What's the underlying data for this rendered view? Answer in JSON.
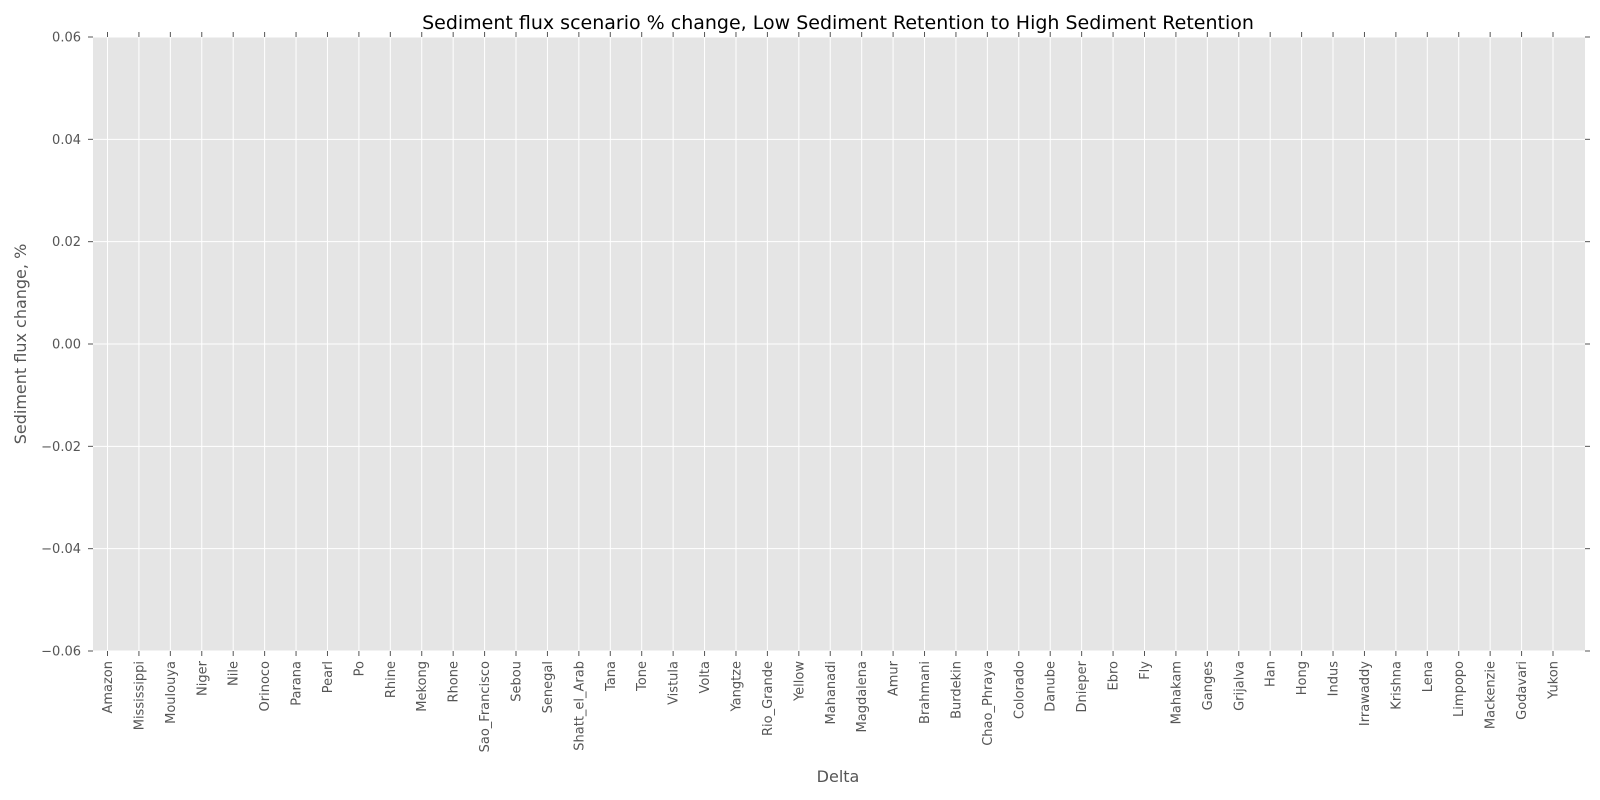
{
  "chart_data": {
    "type": "bar",
    "title": "Sediment flux scenario % change, Low Sediment Retention to High Sediment Retention",
    "xlabel": "Delta",
    "ylabel": "Sediment flux change, %",
    "ylim": [
      -0.06,
      0.06
    ],
    "y_ticks": [
      0.06,
      0.04,
      0.02,
      0.0,
      -0.02,
      -0.04,
      -0.06
    ],
    "y_tick_labels": [
      "0.06",
      "0.04",
      "0.02",
      "0.00",
      "−0.02",
      "−0.04",
      "−0.06"
    ],
    "grid": true,
    "categories": [
      "Amazon",
      "Mississippi",
      "Moulouya",
      "Niger",
      "Nile",
      "Orinoco",
      "Parana",
      "Pearl",
      "Po",
      "Rhine",
      "Mekong",
      "Rhone",
      "Sao_Francisco",
      "Sebou",
      "Senegal",
      "Shatt_el_Arab",
      "Tana",
      "Tone",
      "Vistula",
      "Volta",
      "Yangtze",
      "Rio_Grande",
      "Yellow",
      "Mahanadi",
      "Magdalena",
      "Amur",
      "Brahmani",
      "Burdekin",
      "Chao_Phraya",
      "Colorado",
      "Danube",
      "Dnieper",
      "Ebro",
      "Fly",
      "Mahakam",
      "Ganges",
      "Grijalva",
      "Han",
      "Hong",
      "Indus",
      "Irrawaddy",
      "Krishna",
      "Lena",
      "Limpopo",
      "Mackenzie",
      "Godavari",
      "Yukon"
    ],
    "values": [
      0,
      0,
      0,
      0,
      0,
      0,
      0,
      0,
      0,
      0,
      0,
      0,
      0,
      0,
      0,
      0,
      0,
      0,
      0,
      0,
      0,
      0,
      0,
      0,
      0,
      0,
      0,
      0,
      0,
      0,
      0,
      0,
      0,
      0,
      0,
      0,
      0,
      0,
      0,
      0,
      0,
      0,
      0,
      0,
      0,
      0,
      0
    ],
    "colors": {
      "plot_background": "#e5e5e5",
      "grid": "#ffffff",
      "text": "#555555",
      "title": "#000000"
    }
  }
}
